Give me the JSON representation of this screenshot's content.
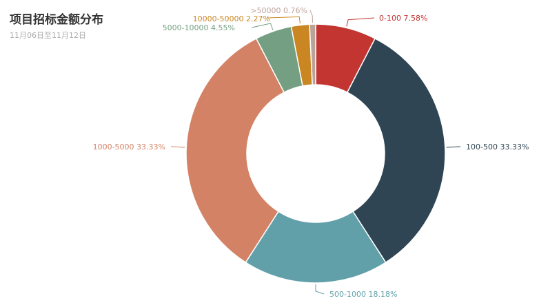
{
  "chart_data": {
    "type": "pie",
    "variant": "donut",
    "title": "项目招标金额分布",
    "subtitle": "11月06日至11月12日",
    "slices": [
      {
        "name": "0-100",
        "percent": "7.58%",
        "value": 7.58,
        "color": "#c23531"
      },
      {
        "name": "100-500",
        "percent": "33.33%",
        "value": 33.33,
        "color": "#2f4554"
      },
      {
        "name": "500-1000",
        "percent": "18.18%",
        "value": 18.18,
        "color": "#61a0a8"
      },
      {
        "name": "1000-5000",
        "percent": "33.33%",
        "value": 33.33,
        "color": "#d48265"
      },
      {
        "name": "5000-10000",
        "percent": "4.55%",
        "value": 4.55,
        "color": "#749f83"
      },
      {
        "name": "10000-50000",
        "percent": "2.27%",
        "value": 2.27,
        "color": "#ca8622"
      },
      {
        "name": ">50000",
        "percent": "0.76%",
        "value": 0.76,
        "color": "#bda29a"
      }
    ],
    "legend": "none",
    "start_angle": "12 o'clock",
    "direction": "clockwise"
  }
}
